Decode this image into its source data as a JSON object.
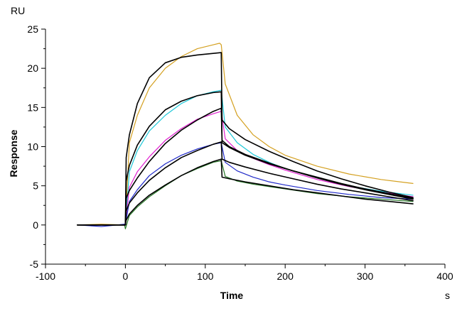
{
  "chart_data": {
    "type": "line",
    "title": "",
    "xlabel": "Time",
    "ylabel": "Response",
    "x_unit": "s",
    "y_unit": "RU",
    "xlim": [
      -100,
      400
    ],
    "ylim": [
      -5,
      25
    ],
    "x_ticks": [
      -100,
      0,
      100,
      200,
      300,
      400
    ],
    "y_ticks": [
      -5,
      0,
      5,
      10,
      15,
      20,
      25
    ],
    "x_tick_labels": [
      "-100",
      "0",
      "100",
      "200",
      "300",
      "400"
    ],
    "y_tick_labels": [
      "-5",
      "0",
      "5",
      "10",
      "15",
      "20",
      "25"
    ],
    "grid": false,
    "legend": "none",
    "injection_start_s": 0,
    "dissociation_start_s": 120,
    "series": [
      {
        "name": "measured-orange",
        "color": "#d4a020",
        "kind": "measured",
        "x": [
          -60,
          -30,
          -1,
          0,
          5,
          15,
          30,
          50,
          70,
          90,
          110,
          118,
          120,
          125,
          140,
          160,
          180,
          200,
          240,
          280,
          320,
          360
        ],
        "y": [
          0.0,
          0.1,
          0.0,
          0.3,
          10.5,
          14.0,
          17.5,
          20.0,
          21.5,
          22.5,
          23.0,
          23.2,
          23.0,
          18.0,
          14.0,
          11.5,
          10.0,
          8.9,
          7.5,
          6.5,
          5.8,
          5.3
        ]
      },
      {
        "name": "measured-cyan",
        "color": "#1ec8d8",
        "kind": "measured",
        "x": [
          -60,
          -30,
          -1,
          0,
          5,
          15,
          30,
          50,
          70,
          90,
          110,
          120,
          125,
          140,
          160,
          180,
          200,
          240,
          280,
          320,
          360
        ],
        "y": [
          0.0,
          0.0,
          0.0,
          0.2,
          6.8,
          9.5,
          12.0,
          14.0,
          15.5,
          16.5,
          17.0,
          17.2,
          12.5,
          10.5,
          9.0,
          8.0,
          7.2,
          6.0,
          5.0,
          4.3,
          3.8
        ]
      },
      {
        "name": "measured-magenta",
        "color": "#e020d0",
        "kind": "measured",
        "x": [
          -60,
          -30,
          -1,
          0,
          5,
          15,
          30,
          50,
          70,
          90,
          110,
          120,
          125,
          140,
          160,
          180,
          200,
          240,
          280,
          320,
          360
        ],
        "y": [
          0.0,
          0.0,
          0.0,
          0.2,
          4.8,
          6.8,
          8.7,
          10.8,
          12.3,
          13.5,
          14.2,
          14.5,
          11.0,
          9.5,
          8.5,
          7.7,
          7.0,
          5.8,
          4.9,
          4.2,
          3.6
        ]
      },
      {
        "name": "measured-blue",
        "color": "#1e28c8",
        "kind": "measured",
        "x": [
          -60,
          -30,
          -1,
          0,
          5,
          15,
          30,
          50,
          70,
          90,
          110,
          120,
          125,
          140,
          160,
          180,
          200,
          240,
          280,
          320,
          360
        ],
        "y": [
          0.0,
          -0.2,
          0.1,
          0.1,
          3.0,
          4.5,
          6.3,
          7.8,
          8.9,
          9.7,
          10.3,
          10.5,
          8.0,
          6.9,
          6.1,
          5.5,
          5.1,
          4.4,
          3.9,
          3.5,
          3.3
        ]
      },
      {
        "name": "measured-green",
        "color": "#287828",
        "kind": "measured",
        "x": [
          -60,
          -30,
          -1,
          0,
          5,
          15,
          30,
          50,
          70,
          90,
          110,
          120,
          125,
          140,
          160,
          180,
          200,
          240,
          280,
          320,
          360
        ],
        "y": [
          0.0,
          0.0,
          0.0,
          -0.5,
          1.2,
          2.3,
          3.6,
          5.0,
          6.3,
          7.2,
          8.0,
          8.2,
          6.2,
          5.6,
          5.2,
          4.9,
          4.6,
          4.0,
          3.6,
          3.3,
          3.0
        ]
      },
      {
        "name": "fit-1",
        "color": "#000000",
        "kind": "fit",
        "x": [
          -60,
          -1,
          0,
          1,
          5,
          15,
          30,
          50,
          70,
          90,
          110,
          120,
          121,
          130,
          150,
          180,
          210,
          240,
          270,
          300,
          330,
          360
        ],
        "y": [
          0.0,
          0.0,
          0.0,
          8.6,
          11.5,
          15.5,
          18.8,
          20.7,
          21.4,
          21.7,
          21.9,
          22.0,
          13.4,
          12.3,
          10.9,
          9.4,
          8.1,
          6.9,
          5.9,
          5.0,
          4.2,
          3.5
        ]
      },
      {
        "name": "fit-2",
        "color": "#000000",
        "kind": "fit",
        "x": [
          -60,
          -1,
          0,
          1,
          5,
          15,
          30,
          50,
          70,
          90,
          110,
          120,
          121,
          130,
          150,
          180,
          210,
          240,
          270,
          300,
          330,
          360
        ],
        "y": [
          0.0,
          0.0,
          0.0,
          5.6,
          7.6,
          10.2,
          12.6,
          14.7,
          15.8,
          16.5,
          16.9,
          17.0,
          10.8,
          10.0,
          9.0,
          7.9,
          6.9,
          6.1,
          5.3,
          4.6,
          4.0,
          3.4
        ]
      },
      {
        "name": "fit-3",
        "color": "#000000",
        "kind": "fit",
        "x": [
          -60,
          -1,
          0,
          1,
          5,
          15,
          30,
          50,
          70,
          90,
          110,
          120,
          121,
          130,
          150,
          180,
          210,
          240,
          270,
          300,
          330,
          360
        ],
        "y": [
          0.0,
          0.0,
          0.0,
          3.4,
          4.4,
          6.0,
          8.1,
          10.4,
          12.1,
          13.4,
          14.5,
          14.9,
          10.5,
          9.9,
          8.9,
          7.8,
          6.9,
          6.0,
          5.2,
          4.5,
          3.9,
          3.3
        ]
      },
      {
        "name": "fit-4",
        "color": "#000000",
        "kind": "fit",
        "x": [
          -60,
          -1,
          0,
          1,
          5,
          15,
          30,
          50,
          70,
          90,
          110,
          120,
          121,
          130,
          150,
          180,
          210,
          240,
          270,
          300,
          330,
          360
        ],
        "y": [
          0.0,
          0.0,
          0.0,
          1.8,
          2.8,
          4.1,
          5.7,
          7.3,
          8.6,
          9.5,
          10.3,
          10.6,
          8.4,
          8.0,
          7.4,
          6.6,
          5.9,
          5.2,
          4.6,
          4.1,
          3.6,
          3.1
        ]
      },
      {
        "name": "fit-5",
        "color": "#000000",
        "kind": "fit",
        "x": [
          -60,
          -1,
          0,
          1,
          5,
          15,
          30,
          50,
          70,
          90,
          110,
          120,
          121,
          130,
          150,
          180,
          210,
          240,
          270,
          300,
          330,
          360
        ],
        "y": [
          0.0,
          0.0,
          0.0,
          0.6,
          1.4,
          2.5,
          3.8,
          5.1,
          6.3,
          7.3,
          8.1,
          8.4,
          6.1,
          5.9,
          5.5,
          5.0,
          4.5,
          4.1,
          3.7,
          3.3,
          3.0,
          2.7
        ]
      }
    ]
  }
}
